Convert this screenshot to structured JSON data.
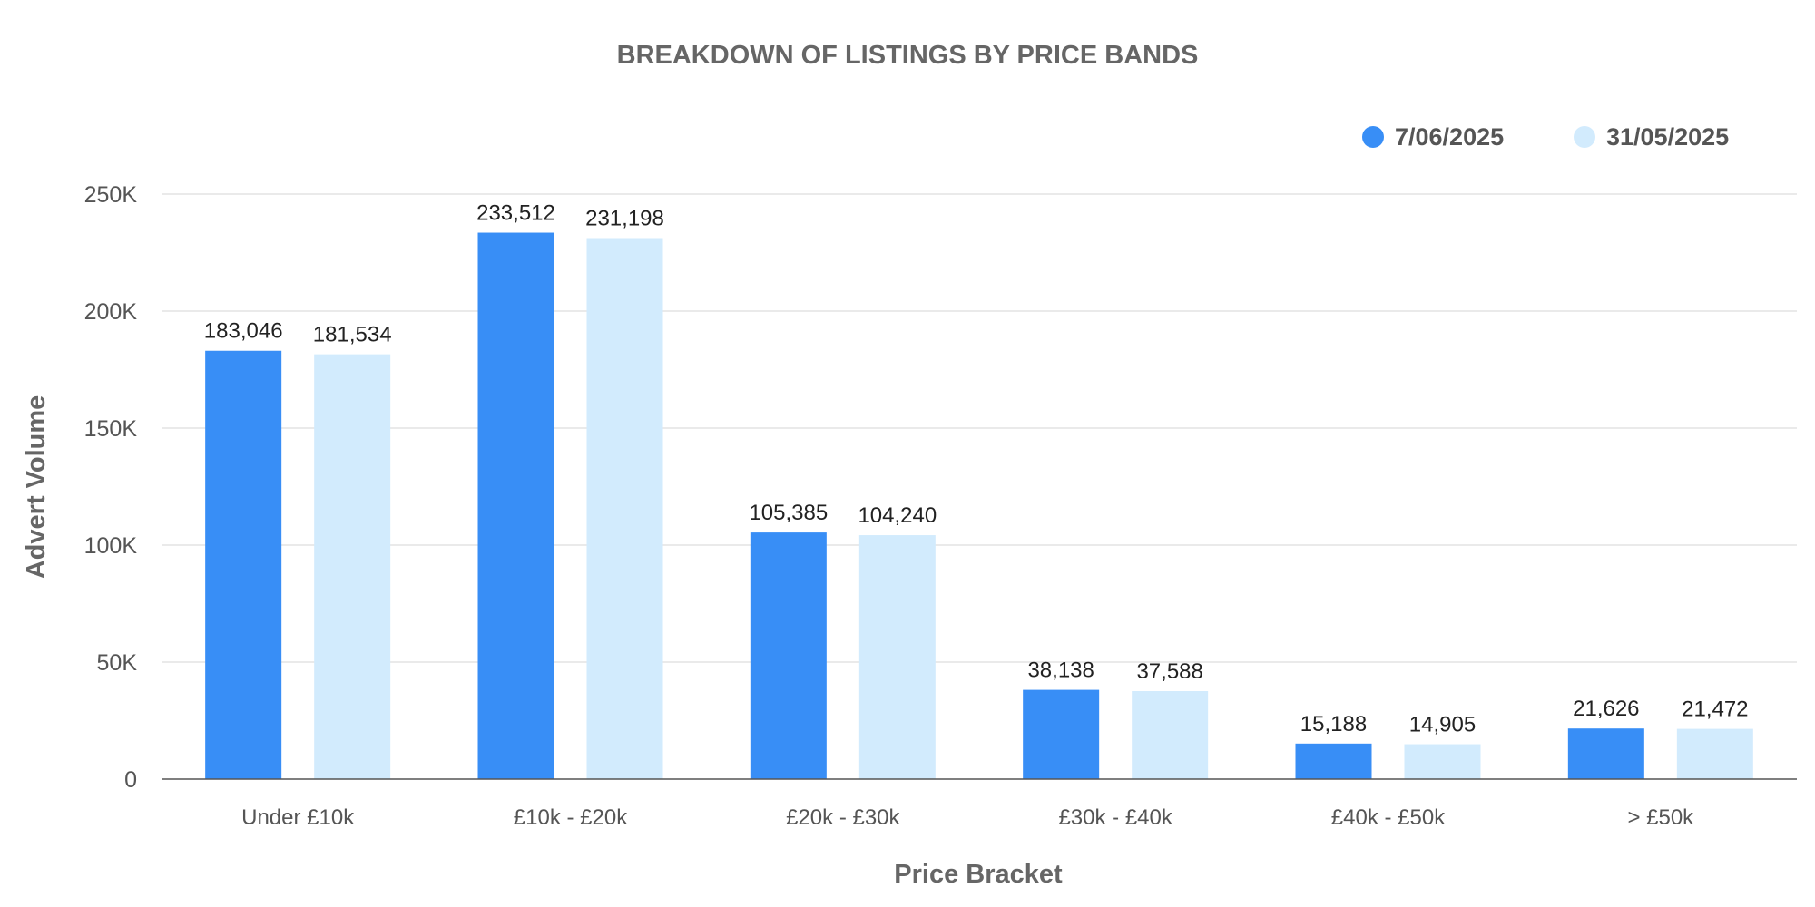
{
  "chart_data": {
    "type": "bar",
    "title": "BREAKDOWN OF LISTINGS BY PRICE BANDS",
    "xlabel": "Price Bracket",
    "ylabel": "Advert Volume",
    "categories": [
      "Under £10k",
      "£10k - £20k",
      "£20k - £30k",
      "£30k - £40k",
      "£40k - £50k",
      "> £50k"
    ],
    "series": [
      {
        "name": "7/06/2025",
        "color": "#388EF6",
        "values": [
          183046,
          233512,
          105385,
          38138,
          15188,
          21626
        ],
        "value_labels": [
          "183,046",
          "233,512",
          "105,385",
          "38,138",
          "15,188",
          "21,626"
        ]
      },
      {
        "name": "31/05/2025",
        "color": "#D2EBFD",
        "values": [
          181534,
          231198,
          104240,
          37588,
          14905,
          21472
        ],
        "value_labels": [
          "181,534",
          "231,198",
          "104,240",
          "37,588",
          "14,905",
          "21,472"
        ]
      }
    ],
    "ylim": [
      0,
      250000
    ],
    "yticks": [
      0,
      50000,
      100000,
      150000,
      200000,
      250000
    ],
    "ytick_labels": [
      "0",
      "50K",
      "100K",
      "150K",
      "200K",
      "250K"
    ],
    "grid": true,
    "legend_position": "top-right"
  }
}
